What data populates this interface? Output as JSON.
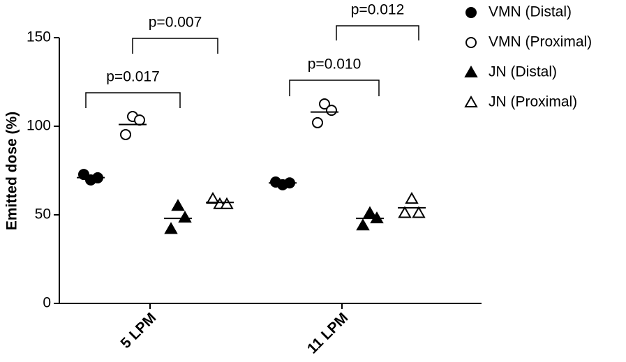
{
  "chart_data": {
    "type": "dot",
    "y_label": "Emitted dose (%)",
    "categories": [
      "5 LPM",
      "11 LPM"
    ],
    "ylim": [
      0,
      150
    ],
    "yticks": [
      0,
      50,
      100,
      150
    ],
    "series": [
      {
        "name": "VMN (Distal)",
        "marker": "circle",
        "filled": true,
        "color": "#000000",
        "points": [
          [
            72.8,
            69.7,
            70.9
          ],
          [
            68.5,
            67,
            68
          ]
        ],
        "means": [
          71,
          68
        ]
      },
      {
        "name": "VMN (Proximal)",
        "marker": "circle",
        "filled": false,
        "color": "#000000",
        "points": [
          [
            95.3,
            105.5,
            103.5
          ],
          [
            102,
            112.6,
            109
          ]
        ],
        "means": [
          101,
          108
        ]
      },
      {
        "name": "JN (Distal)",
        "marker": "triangle",
        "filled": true,
        "color": "#000000",
        "points": [
          [
            42,
            55,
            48.4
          ],
          [
            44,
            51,
            48
          ]
        ],
        "means": [
          48,
          48
        ]
      },
      {
        "name": "JN (Proximal)",
        "marker": "triangle",
        "filled": false,
        "color": "#000000",
        "points": [
          [
            59,
            56,
            56
          ],
          [
            51,
            59,
            51
          ]
        ],
        "means": [
          57,
          54
        ]
      }
    ],
    "annotations": [
      "p=0.017",
      "p=0.007",
      "p=0.010",
      "p=0.012"
    ]
  }
}
